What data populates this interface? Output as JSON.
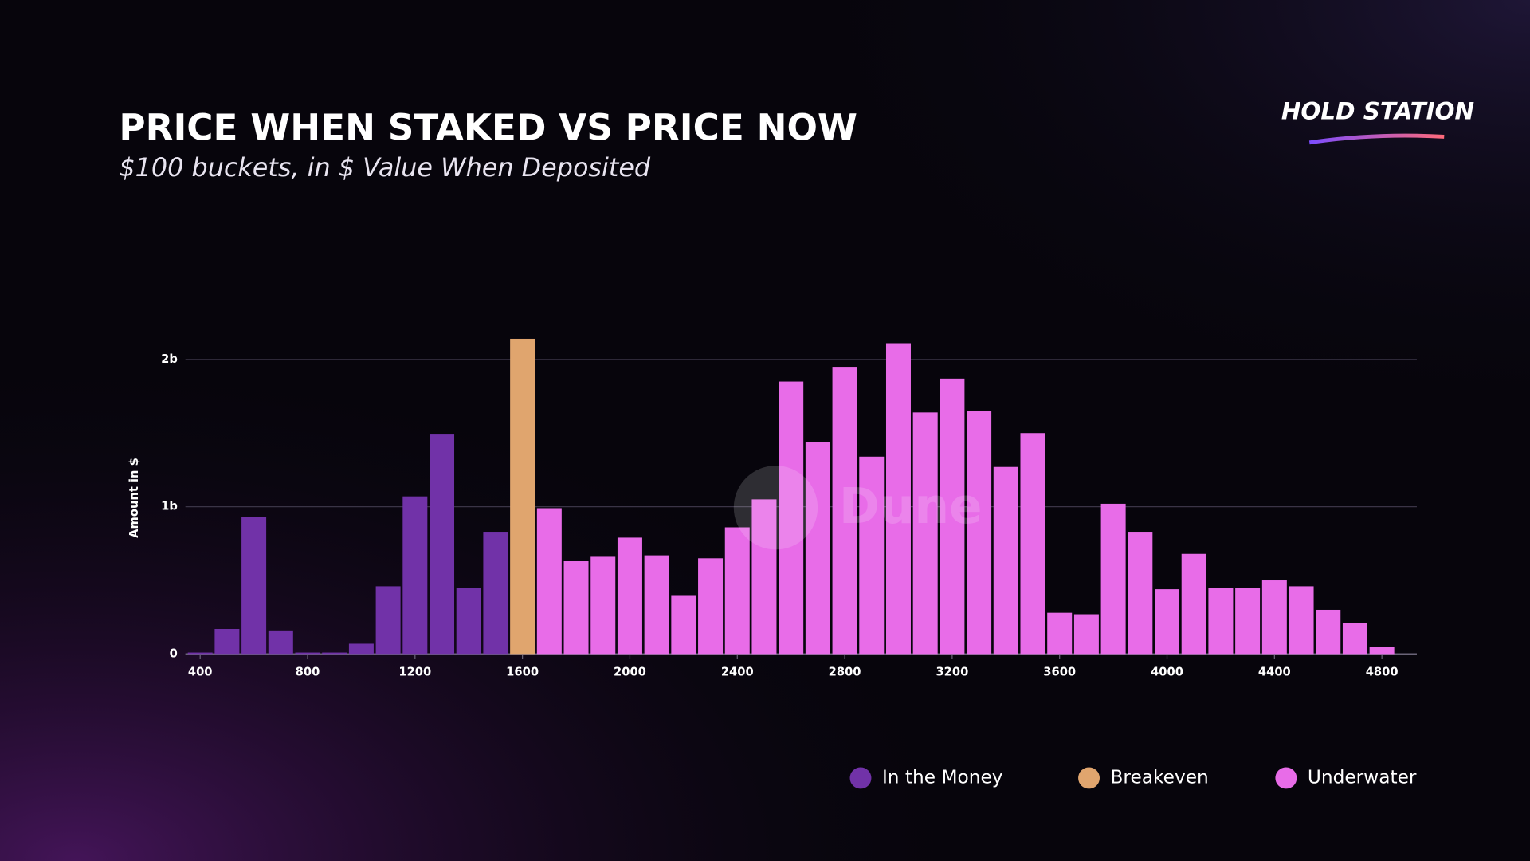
{
  "chart_data": {
    "type": "bar",
    "title": "PRICE WHEN STAKED VS PRICE NOW",
    "subtitle": "$100 buckets, in $ Value When Deposited",
    "logo": "HOLD STATION",
    "watermark": "Dune",
    "y_label": "Amount in $",
    "xlim": [
      345,
      4930
    ],
    "xticks": [
      400,
      800,
      1200,
      1600,
      2000,
      2400,
      2800,
      3200,
      3600,
      4000,
      4400,
      4800
    ],
    "ylim": [
      0,
      2.2
    ],
    "yticks": [
      0,
      {
        "value": 1,
        "label": "1b"
      },
      {
        "value": 2,
        "label": "2b"
      }
    ],
    "grid": true,
    "series": [
      {
        "name": "In the Money",
        "color": "#7132a8",
        "x": [
          400,
          500,
          600,
          700,
          800,
          900,
          1000,
          1100,
          1200,
          1300,
          1400,
          1500
        ],
        "values": [
          0.01,
          0.17,
          0.93,
          0.16,
          0.01,
          0.01,
          0.07,
          0.46,
          1.07,
          1.49,
          0.45,
          0.83
        ]
      },
      {
        "name": "Breakeven",
        "color": "#e0a56e",
        "x": [
          1600
        ],
        "values": [
          2.14
        ]
      },
      {
        "name": "Underwater",
        "color": "#e86ce8",
        "x": [
          1700,
          1800,
          1900,
          2000,
          2100,
          2200,
          2300,
          2400,
          2500,
          2600,
          2700,
          2800,
          2900,
          3000,
          3100,
          3200,
          3300,
          3400,
          3500,
          3600,
          3700,
          3800,
          3900,
          4000,
          4100,
          4200,
          4300,
          4400,
          4500,
          4600,
          4700,
          4800
        ],
        "values": [
          0.99,
          0.63,
          0.66,
          0.79,
          0.67,
          0.4,
          0.65,
          0.86,
          1.05,
          1.85,
          1.44,
          1.95,
          1.34,
          2.11,
          1.64,
          1.87,
          1.65,
          1.27,
          1.5,
          0.28,
          0.27,
          1.02,
          0.83,
          0.44,
          0.68,
          0.45,
          0.45,
          0.5,
          0.46,
          0.3,
          0.21,
          0.05
        ]
      }
    ]
  }
}
